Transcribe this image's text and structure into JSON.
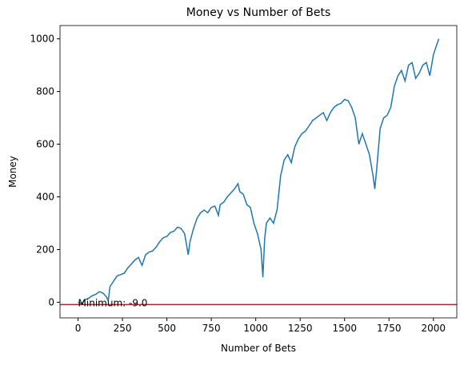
{
  "chart_data": {
    "type": "line",
    "title": "Money vs Number of Bets",
    "xlabel": "Number of Bets",
    "ylabel": "Money",
    "x": [
      0,
      20,
      40,
      60,
      80,
      100,
      120,
      140,
      160,
      170,
      180,
      200,
      220,
      240,
      260,
      280,
      300,
      320,
      340,
      360,
      380,
      400,
      420,
      440,
      460,
      480,
      500,
      520,
      540,
      560,
      580,
      600,
      620,
      630,
      650,
      670,
      690,
      710,
      730,
      750,
      770,
      790,
      800,
      820,
      840,
      860,
      880,
      900,
      910,
      930,
      950,
      970,
      990,
      1010,
      1030,
      1040,
      1050,
      1060,
      1080,
      1100,
      1120,
      1140,
      1160,
      1180,
      1200,
      1220,
      1240,
      1260,
      1280,
      1300,
      1320,
      1340,
      1360,
      1380,
      1400,
      1420,
      1440,
      1460,
      1480,
      1500,
      1520,
      1540,
      1560,
      1580,
      1600,
      1620,
      1640,
      1660,
      1670,
      1680,
      1700,
      1720,
      1740,
      1760,
      1780,
      1800,
      1820,
      1840,
      1860,
      1880,
      1900,
      1920,
      1940,
      1960,
      1980,
      2000,
      2020,
      2030
    ],
    "series": [
      {
        "name": "Money",
        "color": "#1f77b4",
        "values": [
          0,
          -5,
          10,
          15,
          25,
          30,
          40,
          35,
          20,
          5,
          60,
          80,
          100,
          105,
          110,
          130,
          145,
          160,
          170,
          140,
          180,
          190,
          195,
          210,
          230,
          245,
          250,
          265,
          270,
          285,
          280,
          260,
          180,
          230,
          280,
          320,
          340,
          350,
          340,
          360,
          365,
          330,
          370,
          380,
          400,
          415,
          430,
          450,
          420,
          410,
          370,
          360,
          300,
          260,
          200,
          95,
          240,
          300,
          320,
          300,
          350,
          480,
          540,
          560,
          530,
          590,
          620,
          640,
          650,
          670,
          690,
          700,
          710,
          720,
          690,
          720,
          740,
          750,
          755,
          770,
          765,
          740,
          700,
          600,
          640,
          600,
          560,
          480,
          430,
          500,
          660,
          700,
          710,
          740,
          820,
          860,
          880,
          840,
          900,
          910,
          850,
          870,
          900,
          910,
          860,
          940,
          980,
          1000
        ]
      }
    ],
    "hline": {
      "value": -9,
      "color": "#ff0000"
    },
    "annotation": {
      "text": "Minimum: -9.0",
      "x": 0,
      "y": -9
    },
    "xlim": [
      -101.5,
      2131.5
    ],
    "ylim": [
      -59.45,
      1050.45
    ],
    "xticks": [
      0,
      250,
      500,
      750,
      1000,
      1250,
      1500,
      1750,
      2000
    ],
    "yticks": [
      0,
      200,
      400,
      600,
      800,
      1000
    ]
  }
}
